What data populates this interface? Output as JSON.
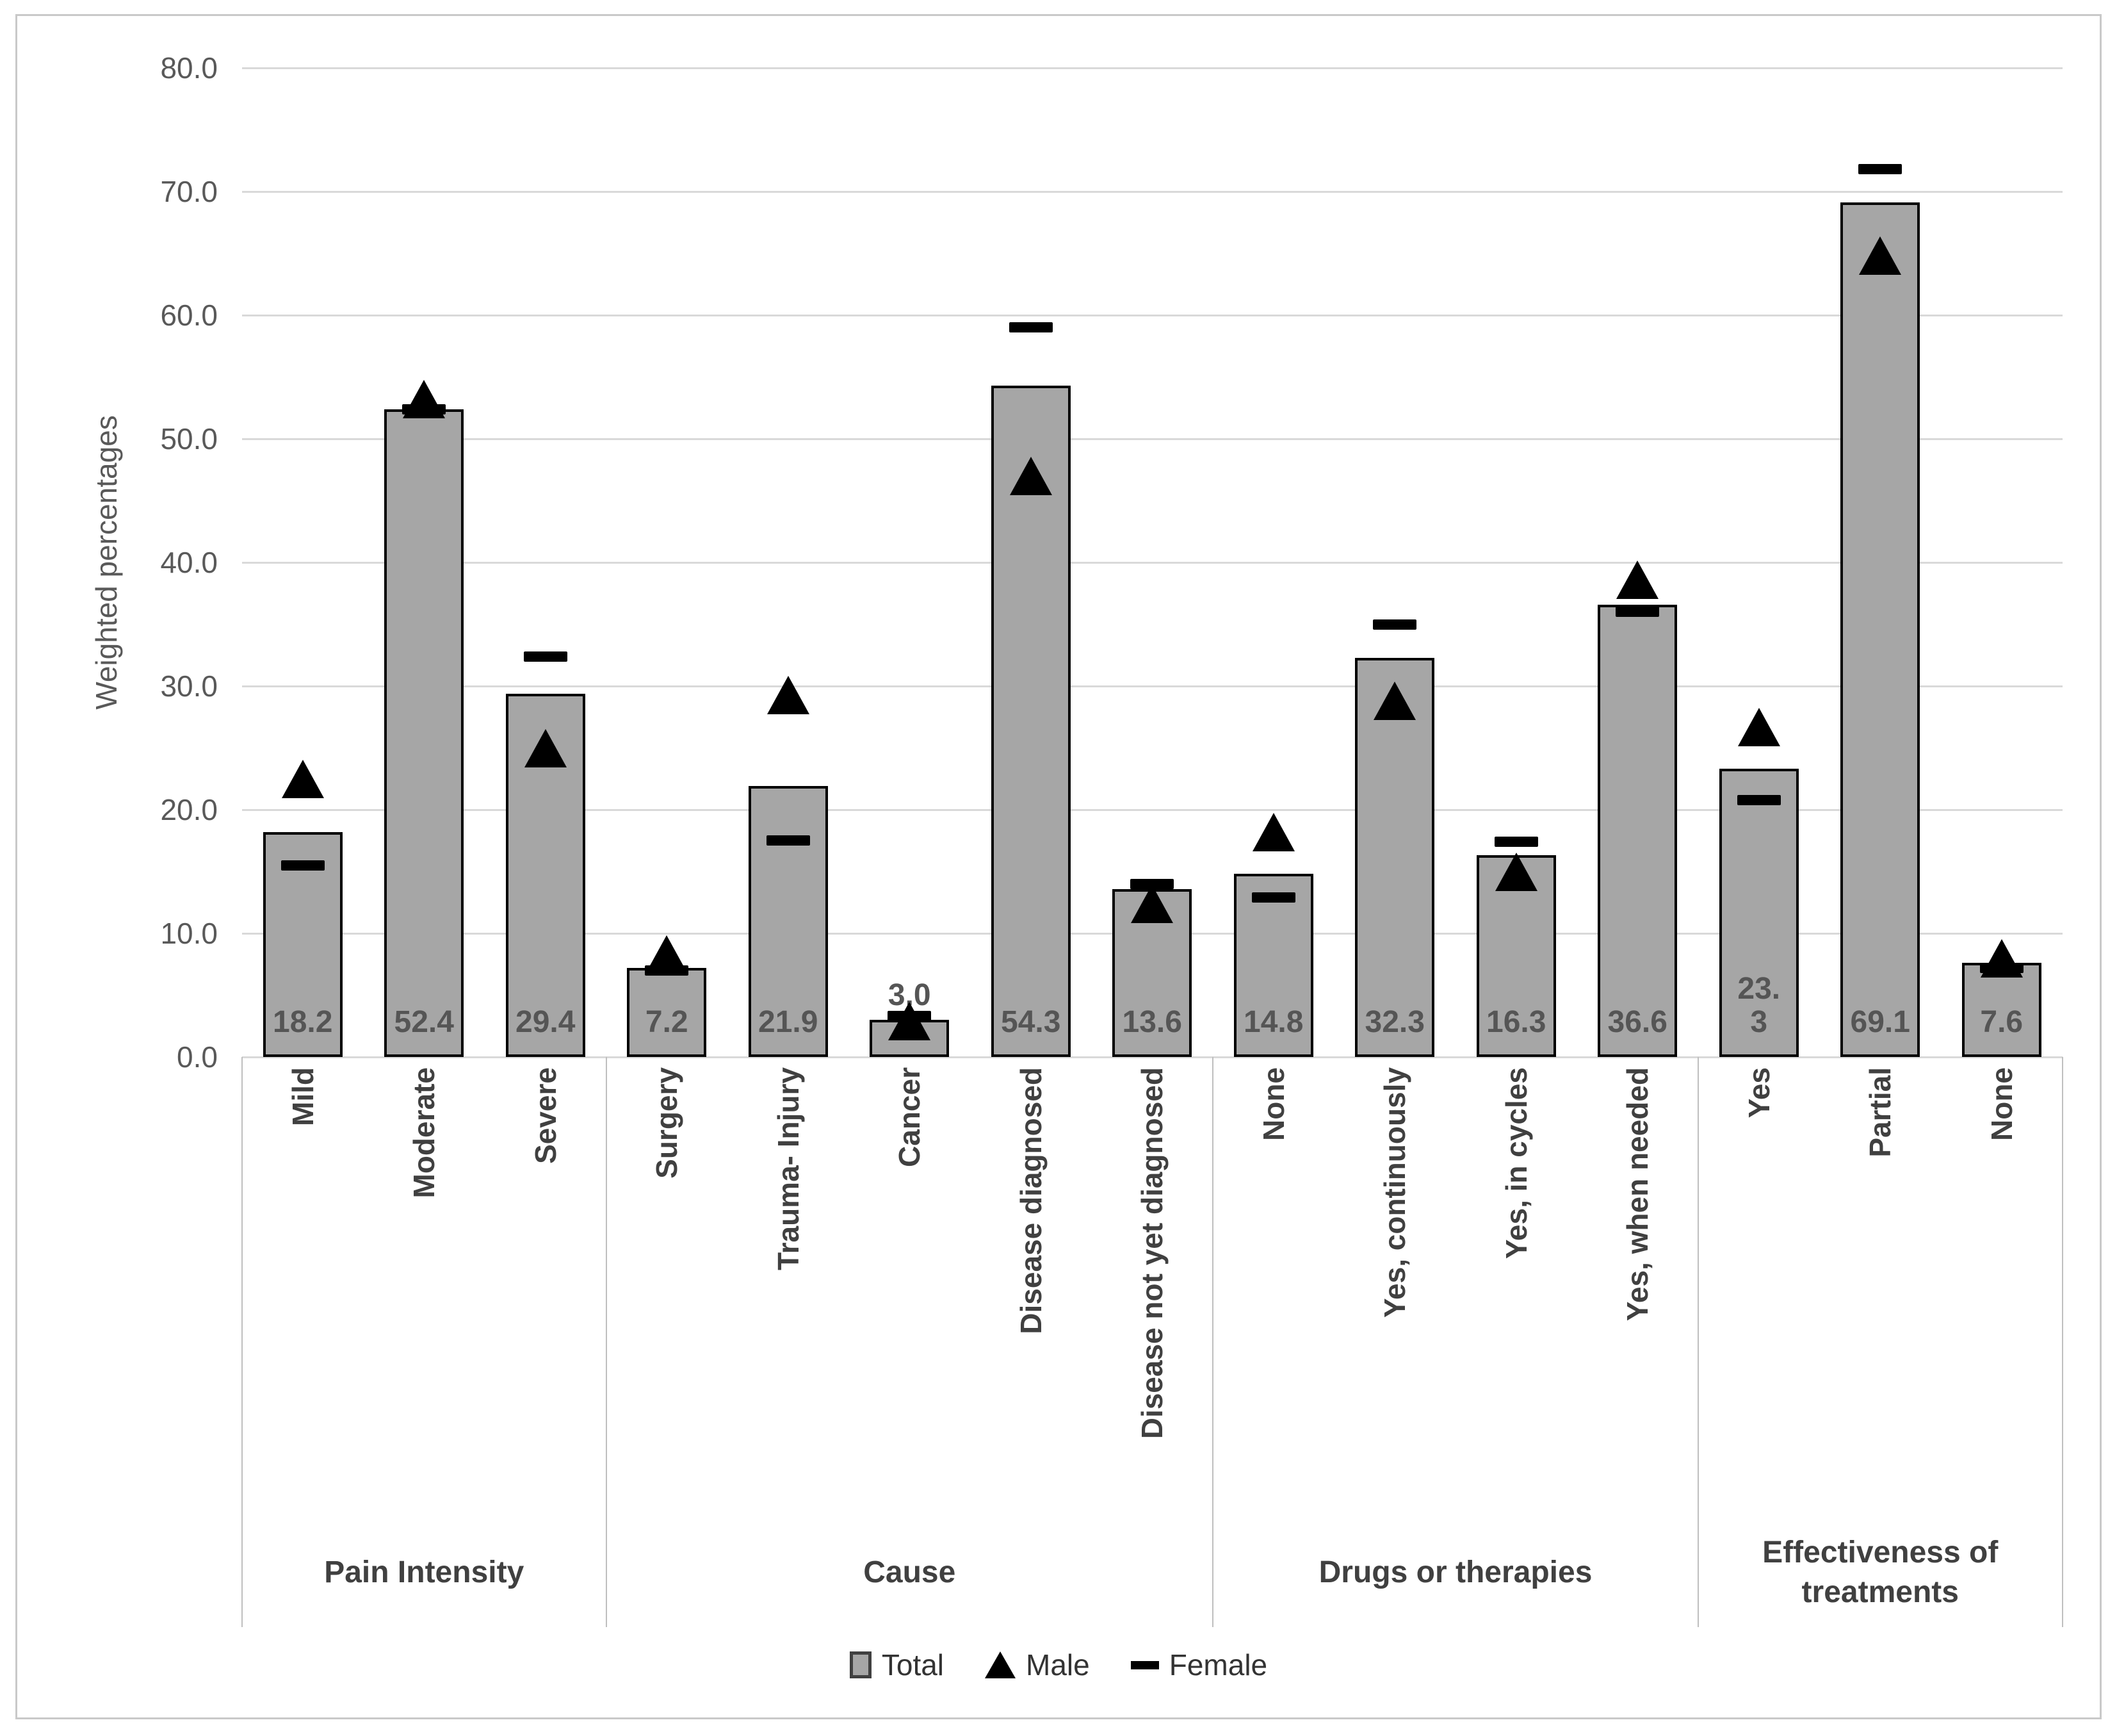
{
  "figure": {
    "background": "#ffffff",
    "frame_color": "#c9c9c9"
  },
  "chart_data": {
    "type": "bar",
    "title": "",
    "xlabel": "",
    "ylabel": "Weighted percentages",
    "ylim": [
      0,
      80
    ],
    "grid": true,
    "legend_position": "bottom",
    "ytick_labels_top_to_bottom": [
      "80.0",
      "70.0",
      "60.0",
      "50.0",
      "40.0",
      "30.0",
      "20.0",
      "10.0",
      "0.0"
    ],
    "groups": [
      {
        "label": "Pain Intensity",
        "count": 3
      },
      {
        "label": "Cause",
        "count": 5
      },
      {
        "label": "Drugs or therapies",
        "count": 4
      },
      {
        "label": "Effectiveness of treatments",
        "count": 3
      }
    ],
    "categories": [
      "Mild",
      "Moderate",
      "Severe",
      "Surgery",
      "Trauma- Injury",
      "Cancer",
      "Disease diagnosed",
      "Disease not yet diagnosed",
      "None",
      "Yes, continuously",
      "Yes, in cycles",
      "Yes, when needed",
      "Yes",
      "Partial",
      "None"
    ],
    "series": [
      {
        "name": "Total",
        "type": "bar",
        "marker": "square",
        "color": "#a6a6a6",
        "values": [
          18.2,
          52.4,
          29.4,
          7.2,
          21.9,
          3.0,
          54.3,
          13.6,
          14.8,
          32.3,
          16.3,
          36.6,
          23.3,
          69.1,
          7.6
        ]
      },
      {
        "name": "Male",
        "type": "point",
        "marker": "triangle",
        "color": "#000000",
        "values": [
          22.5,
          53.2,
          25.0,
          8.3,
          29.3,
          2.9,
          47.0,
          12.4,
          18.2,
          28.8,
          15.0,
          38.6,
          26.7,
          64.8,
          8.0
        ]
      },
      {
        "name": "Female",
        "type": "point",
        "marker": "dash",
        "color": "#000000",
        "values": [
          15.5,
          52.4,
          32.4,
          7.0,
          17.5,
          3.3,
          59.0,
          14.0,
          12.9,
          35.0,
          17.4,
          36.0,
          20.8,
          71.8,
          7.2
        ]
      }
    ],
    "bar_value_labels": [
      "18.2",
      "52.4",
      "29.4",
      "7.2",
      "21.9",
      "3.0",
      "54.3",
      "13.6",
      "14.8",
      "32.3",
      "16.3",
      "36.6",
      "23.\n3",
      "69.1",
      "7.6"
    ]
  },
  "legend": {
    "items": [
      {
        "label": "Total",
        "marker": "square"
      },
      {
        "label": "Male",
        "marker": "triangle"
      },
      {
        "label": "Female",
        "marker": "dash"
      }
    ]
  }
}
